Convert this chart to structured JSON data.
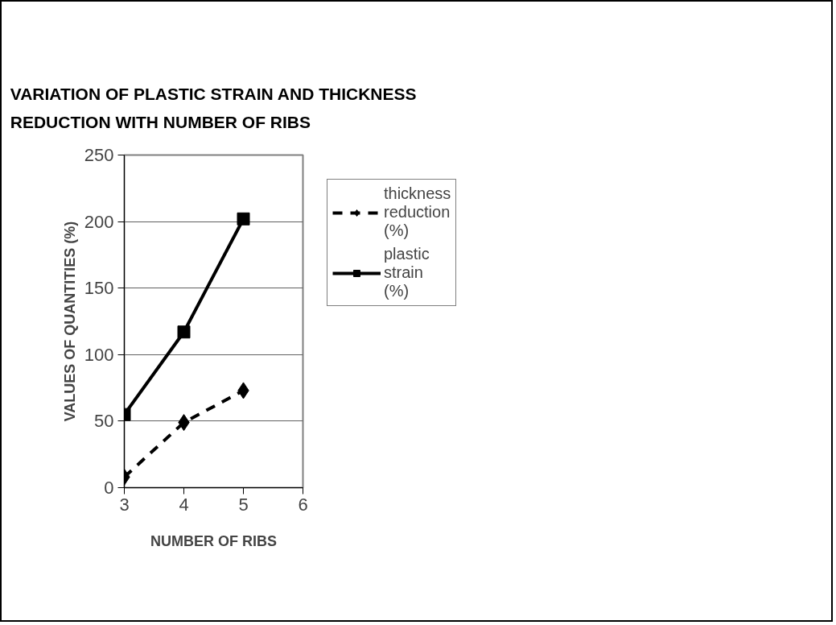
{
  "chart_data": {
    "type": "line",
    "title": "VARIATION OF PLASTIC STRAIN AND THICKNESS REDUCTION WITH NUMBER OF RIBS",
    "xlabel": "NUMBER OF RIBS",
    "ylabel": "VALUES OF QUANTITIES (%)",
    "x": [
      3,
      4,
      5
    ],
    "series": [
      {
        "name": "thickness reduction (%)",
        "color": "#000000",
        "values": [
          8,
          49,
          73
        ],
        "marker": "diamond",
        "line_style": "dashed"
      },
      {
        "name": "plastic strain (%)",
        "color": "#000000",
        "values": [
          55,
          117,
          202
        ],
        "marker": "square",
        "line_style": "solid"
      }
    ],
    "xlim": [
      3,
      6
    ],
    "xticks": [
      3,
      4,
      5,
      6
    ],
    "ylim": [
      0,
      250
    ],
    "yticks": [
      0,
      50,
      100,
      150,
      200,
      250
    ],
    "grid": "y",
    "legend": "right"
  }
}
